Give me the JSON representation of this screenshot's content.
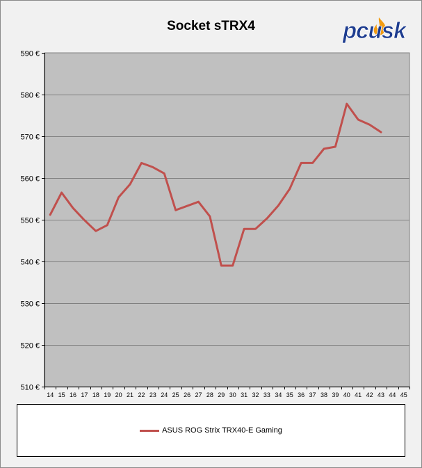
{
  "logo_text": "pcusk",
  "chart_data": {
    "type": "line",
    "title": "Socket sTRX4",
    "xlabel": "",
    "ylabel": "",
    "categories": [
      "14",
      "15",
      "16",
      "17",
      "18",
      "19",
      "20",
      "21",
      "22",
      "23",
      "24",
      "25",
      "26",
      "27",
      "28",
      "29",
      "30",
      "31",
      "32",
      "33",
      "34",
      "35",
      "36",
      "37",
      "38",
      "39",
      "40",
      "41",
      "42",
      "43",
      "44",
      "45"
    ],
    "series": [
      {
        "name": "ASUS ROG Strix TRX40-E Gaming",
        "color": "#c0504d",
        "values": [
          551.2,
          556.5,
          552.8,
          549.9,
          547.3,
          548.7,
          555.4,
          558.5,
          563.6,
          562.6,
          561.1,
          552.3,
          553.3,
          554.3,
          550.8,
          539.0,
          539.0,
          547.8,
          547.8,
          550.3,
          553.4,
          557.4,
          563.6,
          563.6,
          567.0,
          567.5,
          577.8,
          574.0,
          572.8,
          571.0,
          null,
          null
        ]
      }
    ],
    "ylim": [
      510,
      590
    ],
    "yticks": [
      510,
      520,
      530,
      540,
      550,
      560,
      570,
      580,
      590
    ],
    "ytick_suffix": " €",
    "grid": true,
    "plot_bg": "#c0c0c0",
    "legend_position": "bottom"
  }
}
